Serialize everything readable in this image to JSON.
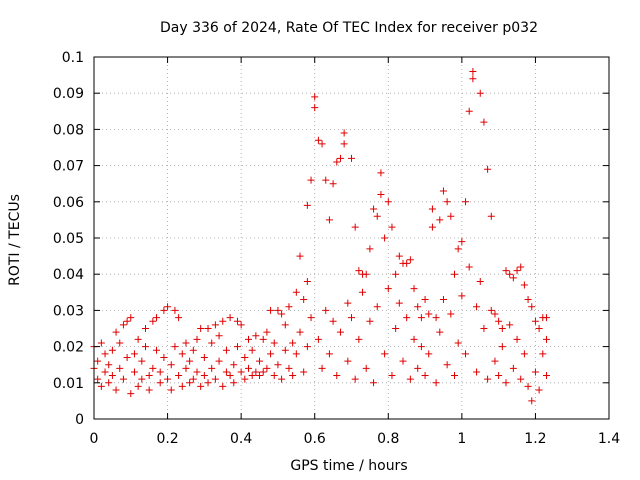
{
  "chart_data": {
    "type": "scatter",
    "title": "Day 336 of 2024, Rate Of TEC Index for receiver p032",
    "xlabel": "GPS time / hours",
    "ylabel": "ROTI / TECUs",
    "xlim": [
      0,
      1.4
    ],
    "ylim": [
      0,
      0.1
    ],
    "x_ticks": [
      "0",
      "0.2",
      "0.4",
      "0.6",
      "0.8",
      "1",
      "1.2",
      "1.4"
    ],
    "y_ticks": [
      "0",
      "0.01",
      "0.02",
      "0.03",
      "0.04",
      "0.05",
      "0.06",
      "0.07",
      "0.08",
      "0.09",
      "0.1"
    ],
    "grid": true,
    "marker": "plus",
    "color": "#e00000",
    "points": [
      [
        0.0,
        0.014
      ],
      [
        0.0,
        0.02
      ],
      [
        0.01,
        0.011
      ],
      [
        0.01,
        0.016
      ],
      [
        0.02,
        0.021
      ],
      [
        0.02,
        0.009
      ],
      [
        0.03,
        0.013
      ],
      [
        0.03,
        0.018
      ],
      [
        0.04,
        0.01
      ],
      [
        0.04,
        0.015
      ],
      [
        0.05,
        0.012
      ],
      [
        0.05,
        0.019
      ],
      [
        0.06,
        0.024
      ],
      [
        0.06,
        0.008
      ],
      [
        0.07,
        0.014
      ],
      [
        0.07,
        0.021
      ],
      [
        0.08,
        0.026
      ],
      [
        0.08,
        0.011
      ],
      [
        0.09,
        0.017
      ],
      [
        0.09,
        0.027
      ],
      [
        0.1,
        0.028
      ],
      [
        0.1,
        0.007
      ],
      [
        0.11,
        0.013
      ],
      [
        0.11,
        0.018
      ],
      [
        0.12,
        0.009
      ],
      [
        0.12,
        0.022
      ],
      [
        0.13,
        0.011
      ],
      [
        0.13,
        0.016
      ],
      [
        0.14,
        0.02
      ],
      [
        0.14,
        0.025
      ],
      [
        0.15,
        0.012
      ],
      [
        0.15,
        0.008
      ],
      [
        0.16,
        0.014
      ],
      [
        0.16,
        0.027
      ],
      [
        0.17,
        0.028
      ],
      [
        0.17,
        0.019
      ],
      [
        0.18,
        0.01
      ],
      [
        0.18,
        0.013
      ],
      [
        0.19,
        0.03
      ],
      [
        0.19,
        0.017
      ],
      [
        0.2,
        0.031
      ],
      [
        0.2,
        0.011
      ],
      [
        0.21,
        0.015
      ],
      [
        0.21,
        0.008
      ],
      [
        0.22,
        0.03
      ],
      [
        0.22,
        0.02
      ],
      [
        0.23,
        0.012
      ],
      [
        0.23,
        0.028
      ],
      [
        0.24,
        0.018
      ],
      [
        0.24,
        0.009
      ],
      [
        0.25,
        0.014
      ],
      [
        0.25,
        0.021
      ],
      [
        0.26,
        0.01
      ],
      [
        0.26,
        0.016
      ],
      [
        0.27,
        0.011
      ],
      [
        0.27,
        0.019
      ],
      [
        0.28,
        0.022
      ],
      [
        0.28,
        0.013
      ],
      [
        0.29,
        0.025
      ],
      [
        0.29,
        0.009
      ],
      [
        0.3,
        0.017
      ],
      [
        0.3,
        0.012
      ],
      [
        0.31,
        0.025
      ],
      [
        0.31,
        0.01
      ],
      [
        0.32,
        0.021
      ],
      [
        0.32,
        0.014
      ],
      [
        0.33,
        0.026
      ],
      [
        0.33,
        0.011
      ],
      [
        0.34,
        0.016
      ],
      [
        0.34,
        0.023
      ],
      [
        0.35,
        0.027
      ],
      [
        0.35,
        0.009
      ],
      [
        0.36,
        0.013
      ],
      [
        0.36,
        0.019
      ],
      [
        0.37,
        0.028
      ],
      [
        0.37,
        0.012
      ],
      [
        0.38,
        0.015
      ],
      [
        0.38,
        0.01
      ],
      [
        0.39,
        0.027
      ],
      [
        0.39,
        0.02
      ],
      [
        0.4,
        0.026
      ],
      [
        0.4,
        0.013
      ],
      [
        0.41,
        0.011
      ],
      [
        0.41,
        0.017
      ],
      [
        0.42,
        0.022
      ],
      [
        0.42,
        0.014
      ],
      [
        0.43,
        0.012
      ],
      [
        0.43,
        0.019
      ],
      [
        0.44,
        0.023
      ],
      [
        0.44,
        0.013
      ],
      [
        0.45,
        0.012
      ],
      [
        0.45,
        0.016
      ],
      [
        0.46,
        0.022
      ],
      [
        0.46,
        0.013
      ],
      [
        0.47,
        0.014
      ],
      [
        0.47,
        0.024
      ],
      [
        0.48,
        0.03
      ],
      [
        0.48,
        0.018
      ],
      [
        0.49,
        0.012
      ],
      [
        0.49,
        0.021
      ],
      [
        0.5,
        0.03
      ],
      [
        0.5,
        0.015
      ],
      [
        0.51,
        0.029
      ],
      [
        0.51,
        0.011
      ],
      [
        0.52,
        0.019
      ],
      [
        0.52,
        0.026
      ],
      [
        0.53,
        0.031
      ],
      [
        0.53,
        0.014
      ],
      [
        0.54,
        0.021
      ],
      [
        0.54,
        0.012
      ],
      [
        0.55,
        0.035
      ],
      [
        0.55,
        0.018
      ],
      [
        0.56,
        0.045
      ],
      [
        0.56,
        0.024
      ],
      [
        0.57,
        0.033
      ],
      [
        0.57,
        0.013
      ],
      [
        0.58,
        0.038
      ],
      [
        0.58,
        0.02
      ],
      [
        0.58,
        0.059
      ],
      [
        0.59,
        0.066
      ],
      [
        0.59,
        0.028
      ],
      [
        0.6,
        0.086
      ],
      [
        0.6,
        0.089
      ],
      [
        0.61,
        0.077
      ],
      [
        0.61,
        0.022
      ],
      [
        0.62,
        0.076
      ],
      [
        0.62,
        0.014
      ],
      [
        0.63,
        0.066
      ],
      [
        0.63,
        0.03
      ],
      [
        0.64,
        0.055
      ],
      [
        0.64,
        0.018
      ],
      [
        0.65,
        0.065
      ],
      [
        0.65,
        0.027
      ],
      [
        0.66,
        0.071
      ],
      [
        0.66,
        0.012
      ],
      [
        0.67,
        0.072
      ],
      [
        0.67,
        0.024
      ],
      [
        0.68,
        0.076
      ],
      [
        0.68,
        0.079
      ],
      [
        0.69,
        0.032
      ],
      [
        0.69,
        0.016
      ],
      [
        0.7,
        0.072
      ],
      [
        0.7,
        0.028
      ],
      [
        0.71,
        0.053
      ],
      [
        0.71,
        0.011
      ],
      [
        0.72,
        0.041
      ],
      [
        0.72,
        0.022
      ],
      [
        0.73,
        0.04
      ],
      [
        0.73,
        0.035
      ],
      [
        0.74,
        0.04
      ],
      [
        0.74,
        0.014
      ],
      [
        0.75,
        0.047
      ],
      [
        0.75,
        0.027
      ],
      [
        0.76,
        0.058
      ],
      [
        0.76,
        0.01
      ],
      [
        0.77,
        0.056
      ],
      [
        0.77,
        0.031
      ],
      [
        0.78,
        0.062
      ],
      [
        0.78,
        0.068
      ],
      [
        0.79,
        0.05
      ],
      [
        0.79,
        0.018
      ],
      [
        0.8,
        0.06
      ],
      [
        0.8,
        0.036
      ],
      [
        0.81,
        0.053
      ],
      [
        0.81,
        0.012
      ],
      [
        0.82,
        0.04
      ],
      [
        0.82,
        0.025
      ],
      [
        0.83,
        0.045
      ],
      [
        0.83,
        0.032
      ],
      [
        0.84,
        0.043
      ],
      [
        0.84,
        0.016
      ],
      [
        0.85,
        0.043
      ],
      [
        0.85,
        0.028
      ],
      [
        0.86,
        0.044
      ],
      [
        0.86,
        0.011
      ],
      [
        0.87,
        0.036
      ],
      [
        0.87,
        0.022
      ],
      [
        0.88,
        0.031
      ],
      [
        0.88,
        0.014
      ],
      [
        0.89,
        0.028
      ],
      [
        0.89,
        0.02
      ],
      [
        0.9,
        0.033
      ],
      [
        0.9,
        0.012
      ],
      [
        0.91,
        0.029
      ],
      [
        0.91,
        0.018
      ],
      [
        0.92,
        0.053
      ],
      [
        0.92,
        0.058
      ],
      [
        0.93,
        0.028
      ],
      [
        0.93,
        0.01
      ],
      [
        0.94,
        0.055
      ],
      [
        0.94,
        0.024
      ],
      [
        0.95,
        0.063
      ],
      [
        0.95,
        0.033
      ],
      [
        0.96,
        0.06
      ],
      [
        0.96,
        0.015
      ],
      [
        0.97,
        0.056
      ],
      [
        0.97,
        0.029
      ],
      [
        0.98,
        0.04
      ],
      [
        0.98,
        0.012
      ],
      [
        0.99,
        0.047
      ],
      [
        0.99,
        0.021
      ],
      [
        1.0,
        0.049
      ],
      [
        1.0,
        0.034
      ],
      [
        1.01,
        0.06
      ],
      [
        1.01,
        0.018
      ],
      [
        1.02,
        0.085
      ],
      [
        1.02,
        0.042
      ],
      [
        1.03,
        0.094
      ],
      [
        1.03,
        0.096
      ],
      [
        1.04,
        0.031
      ],
      [
        1.04,
        0.013
      ],
      [
        1.05,
        0.09
      ],
      [
        1.05,
        0.038
      ],
      [
        1.06,
        0.082
      ],
      [
        1.06,
        0.025
      ],
      [
        1.07,
        0.069
      ],
      [
        1.07,
        0.011
      ],
      [
        1.08,
        0.056
      ],
      [
        1.08,
        0.03
      ],
      [
        1.09,
        0.029
      ],
      [
        1.09,
        0.016
      ],
      [
        1.1,
        0.027
      ],
      [
        1.1,
        0.012
      ],
      [
        1.11,
        0.025
      ],
      [
        1.11,
        0.02
      ],
      [
        1.12,
        0.041
      ],
      [
        1.12,
        0.01
      ],
      [
        1.13,
        0.04
      ],
      [
        1.13,
        0.026
      ],
      [
        1.14,
        0.039
      ],
      [
        1.14,
        0.014
      ],
      [
        1.15,
        0.041
      ],
      [
        1.15,
        0.022
      ],
      [
        1.16,
        0.042
      ],
      [
        1.16,
        0.011
      ],
      [
        1.17,
        0.037
      ],
      [
        1.17,
        0.018
      ],
      [
        1.18,
        0.033
      ],
      [
        1.18,
        0.009
      ],
      [
        1.19,
        0.031
      ],
      [
        1.19,
        0.005
      ],
      [
        1.2,
        0.027
      ],
      [
        1.2,
        0.013
      ],
      [
        1.21,
        0.025
      ],
      [
        1.21,
        0.008
      ],
      [
        1.22,
        0.028
      ],
      [
        1.22,
        0.018
      ],
      [
        1.23,
        0.022
      ],
      [
        1.23,
        0.012
      ],
      [
        1.23,
        0.028
      ]
    ]
  }
}
